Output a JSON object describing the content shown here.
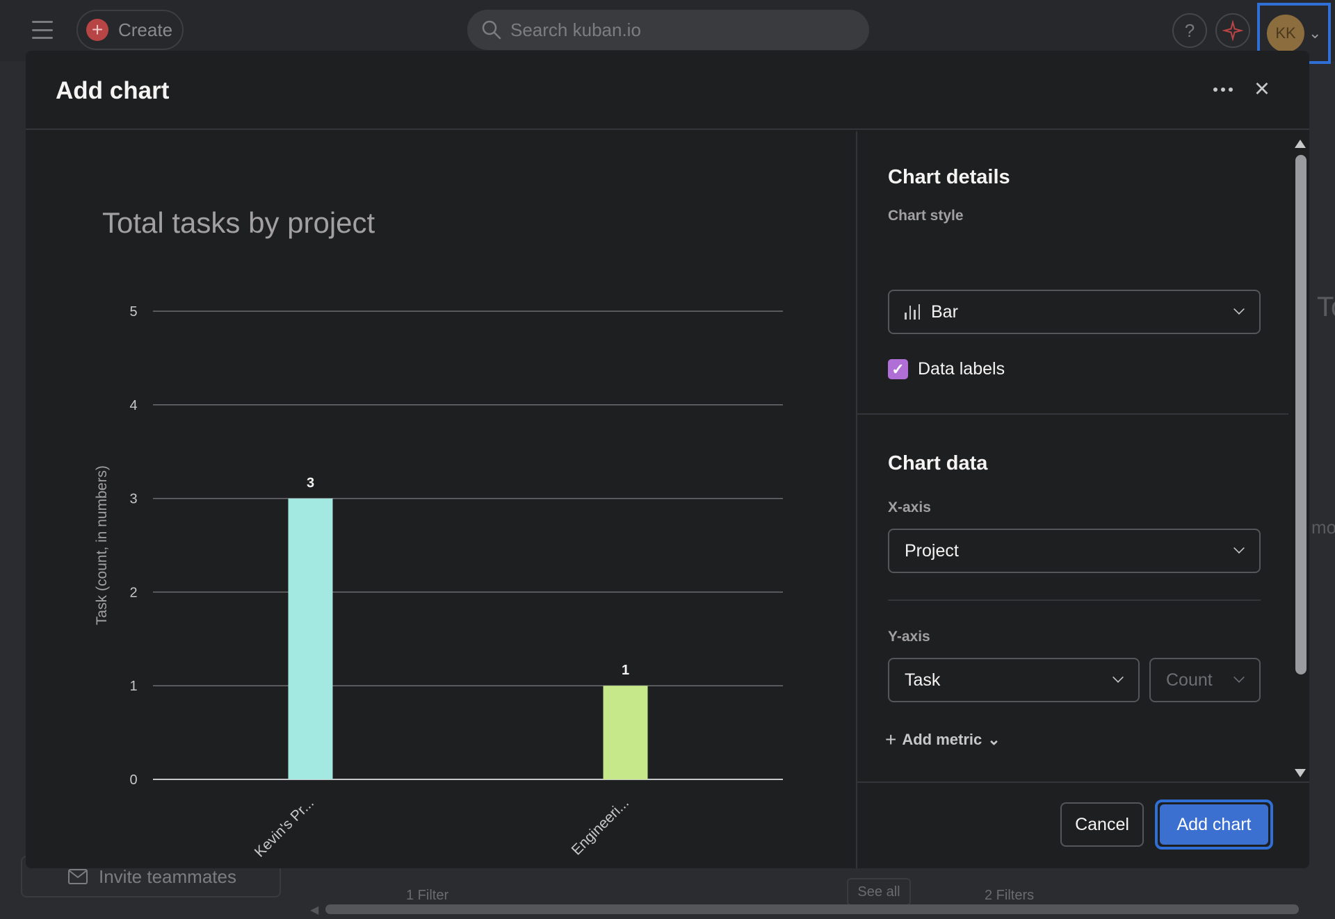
{
  "topbar": {
    "create_label": "Create",
    "search_placeholder": "Search kuban.io",
    "help_glyph": "?",
    "avatar_initials": "KK"
  },
  "background": {
    "invite_label": "Invite teammates",
    "filter_1": "1 Filter",
    "see_all": "See all",
    "filter_2": "2 Filters",
    "right_fragment_1": "To",
    "right_fragment_2": "mo"
  },
  "modal": {
    "title": "Add chart",
    "chart_details_heading": "Chart details",
    "chart_style_label": "Chart style",
    "chart_style_value": "Bar",
    "data_labels_label": "Data labels",
    "data_labels_checked": true,
    "chart_data_heading": "Chart data",
    "x_axis_label": "X-axis",
    "x_axis_value": "Project",
    "y_axis_label": "Y-axis",
    "y_axis_value": "Task",
    "y_axis_aggregate": "Count",
    "add_metric_label": "Add metric",
    "cancel_label": "Cancel",
    "add_chart_label": "Add chart"
  },
  "chart_data": {
    "type": "bar",
    "title": "Total tasks by project",
    "xlabel": "",
    "ylabel": "Task (count, in numbers)",
    "categories": [
      "Kevin's Pr...",
      "Engineeri..."
    ],
    "values": [
      3,
      1
    ],
    "colors": [
      "#a3e8e1",
      "#c6e88a"
    ],
    "ylim": [
      0,
      5
    ],
    "yticks": [
      0,
      1,
      2,
      3,
      4,
      5
    ],
    "data_labels": true,
    "grid": true
  },
  "colors": {
    "accent": "#3b6fd0",
    "focus_ring": "#2f6fd6",
    "checkbox": "#b06fd6",
    "modal_bg": "#1e1f21"
  }
}
